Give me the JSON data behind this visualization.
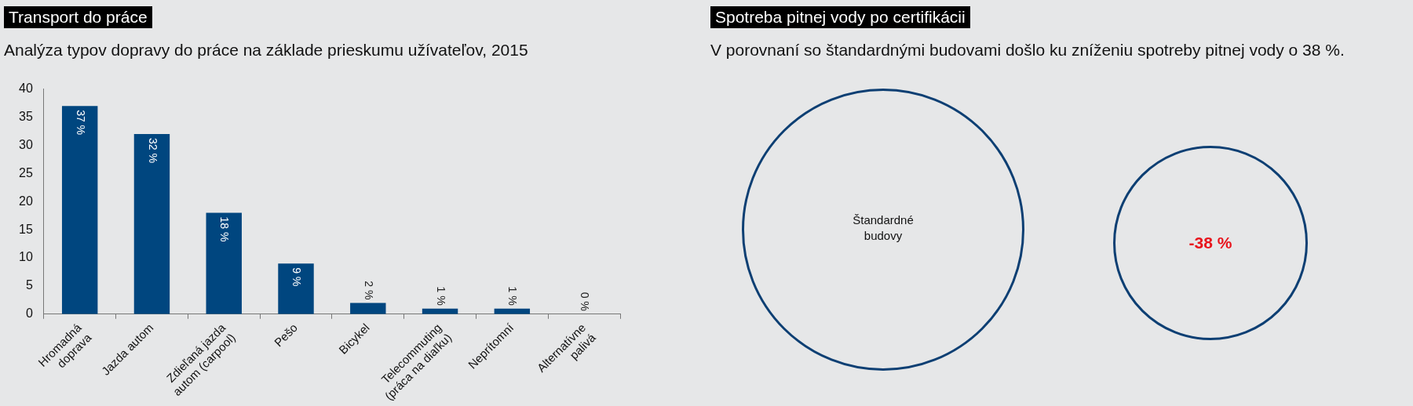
{
  "chart_data": [
    {
      "type": "bar",
      "title": "Transport do práce",
      "subtitle": "Analýza typov dopravy do práce na základe prieskumu užívateľov, 2015",
      "categories": [
        "Hromadná doprava",
        "Jazda autom",
        "Zdieľaná jazda autom (carpool)",
        "Pešo",
        "Bicykel",
        "Telecommuting (práca na diaľku)",
        "Neprítomní",
        "Alternatívne palivá"
      ],
      "values": [
        37,
        32,
        18,
        9,
        2,
        1,
        1,
        0
      ],
      "value_labels": [
        "37 %",
        "32 %",
        "18 %",
        "9 %",
        "2 %",
        "1 %",
        "1 %",
        "0 %"
      ],
      "color": "#00467f",
      "ylim": [
        0,
        40
      ],
      "yticks": [
        0,
        5,
        10,
        15,
        20,
        25,
        30,
        35,
        40
      ],
      "grid": false,
      "legend": false
    },
    {
      "type": "other",
      "title": "Spotreba pitnej vody po certifikácii",
      "subtitle": "V porovnaní so štandardnými budovami došlo ku zníženiu spotreby pitnej vody o 38 %.",
      "annotations": [
        "Štandardné budovy",
        "-38 %"
      ],
      "colors": [
        "#0d3f73",
        "#0d3f73"
      ]
    }
  ]
}
